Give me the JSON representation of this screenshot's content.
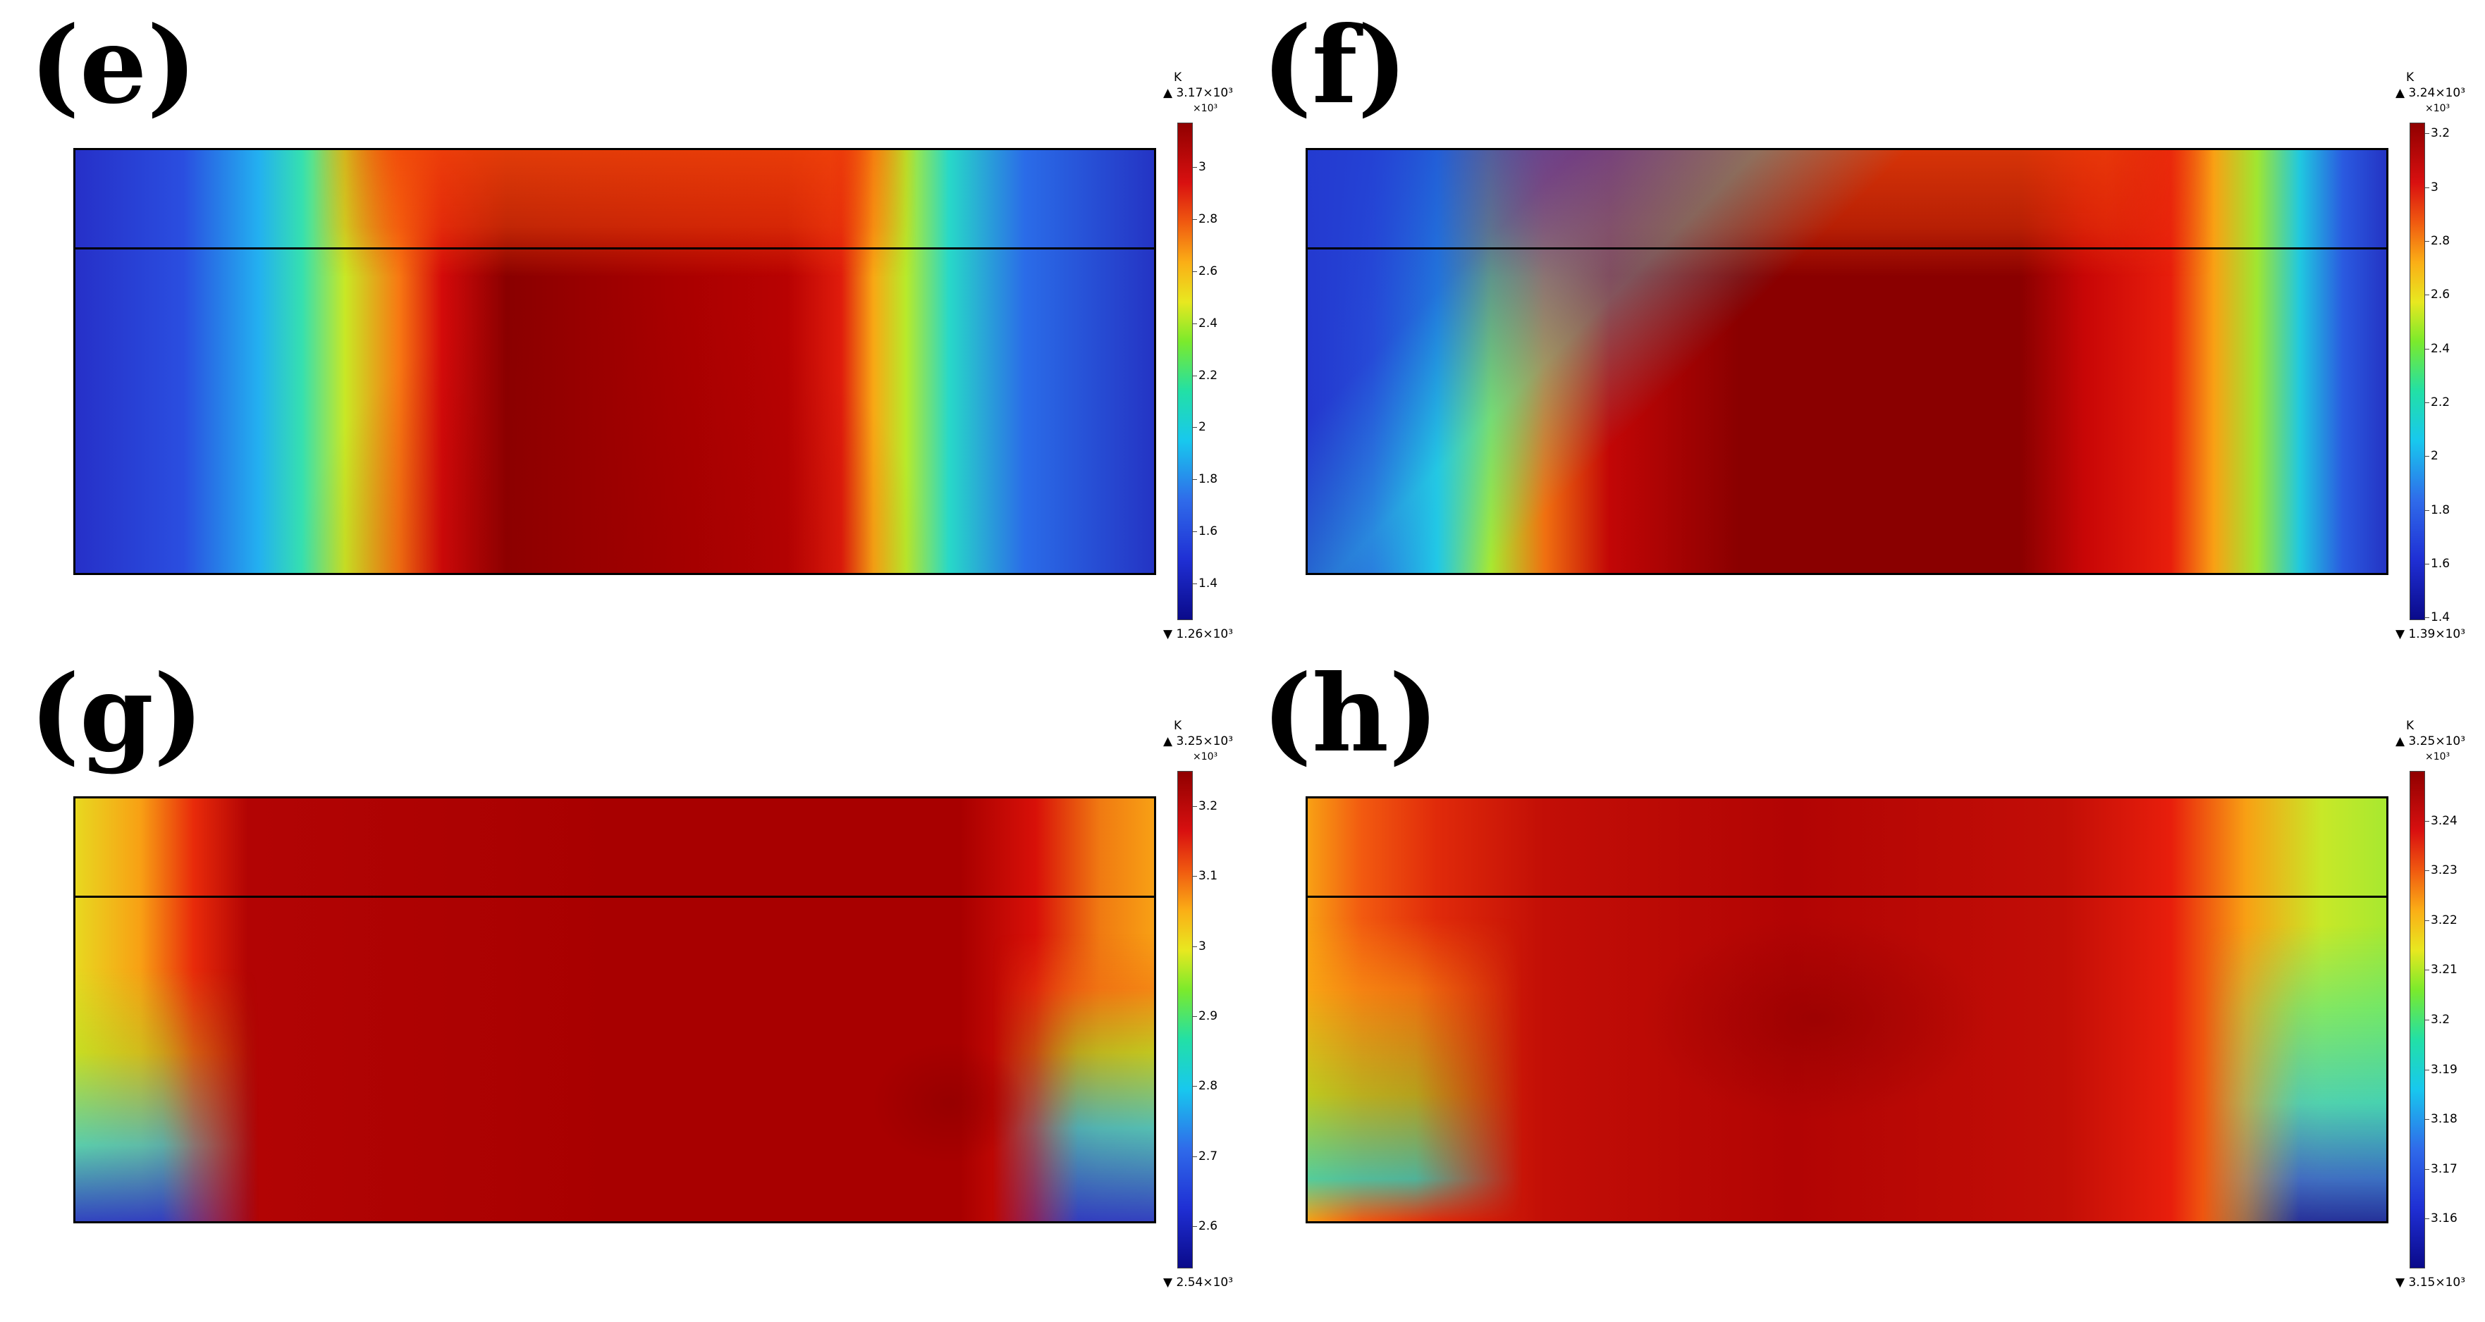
{
  "chart_data": [
    {
      "type": "heatmap",
      "panel_label": "(e)",
      "colorbar": {
        "unit": "K",
        "max_label": "▲ 3.17×10³",
        "min_label": "▼ 1.26×10³",
        "multiplier": "×10³",
        "min": 1.26,
        "max": 3.17,
        "ticks": [
          "1.4",
          "1.6",
          "1.8",
          "2",
          "2.2",
          "2.4",
          "2.6",
          "2.8",
          "3"
        ]
      }
    },
    {
      "type": "heatmap",
      "panel_label": "(f)",
      "colorbar": {
        "unit": "K",
        "max_label": "▲ 3.24×10³",
        "min_label": "▼ 1.39×10³",
        "multiplier": "×10³",
        "min": 1.39,
        "max": 3.24,
        "ticks": [
          "1.4",
          "1.6",
          "1.8",
          "2",
          "2.2",
          "2.4",
          "2.6",
          "2.8",
          "3",
          "3.2"
        ]
      }
    },
    {
      "type": "heatmap",
      "panel_label": "(g)",
      "colorbar": {
        "unit": "K",
        "max_label": "▲ 3.25×10³",
        "min_label": "▼ 2.54×10³",
        "multiplier": "×10³",
        "min": 2.54,
        "max": 3.25,
        "ticks": [
          "2.6",
          "2.7",
          "2.8",
          "2.9",
          "3",
          "3.1",
          "3.2"
        ]
      }
    },
    {
      "type": "heatmap",
      "panel_label": "(h)",
      "colorbar": {
        "unit": "K",
        "max_label": "▲ 3.25×10³",
        "min_label": "▼ 3.15×10³",
        "multiplier": "×10³",
        "min": 3.15,
        "max": 3.25,
        "ticks": [
          "3.16",
          "3.17",
          "3.18",
          "3.19",
          "3.2",
          "3.21",
          "3.22",
          "3.23",
          "3.24"
        ]
      }
    }
  ]
}
